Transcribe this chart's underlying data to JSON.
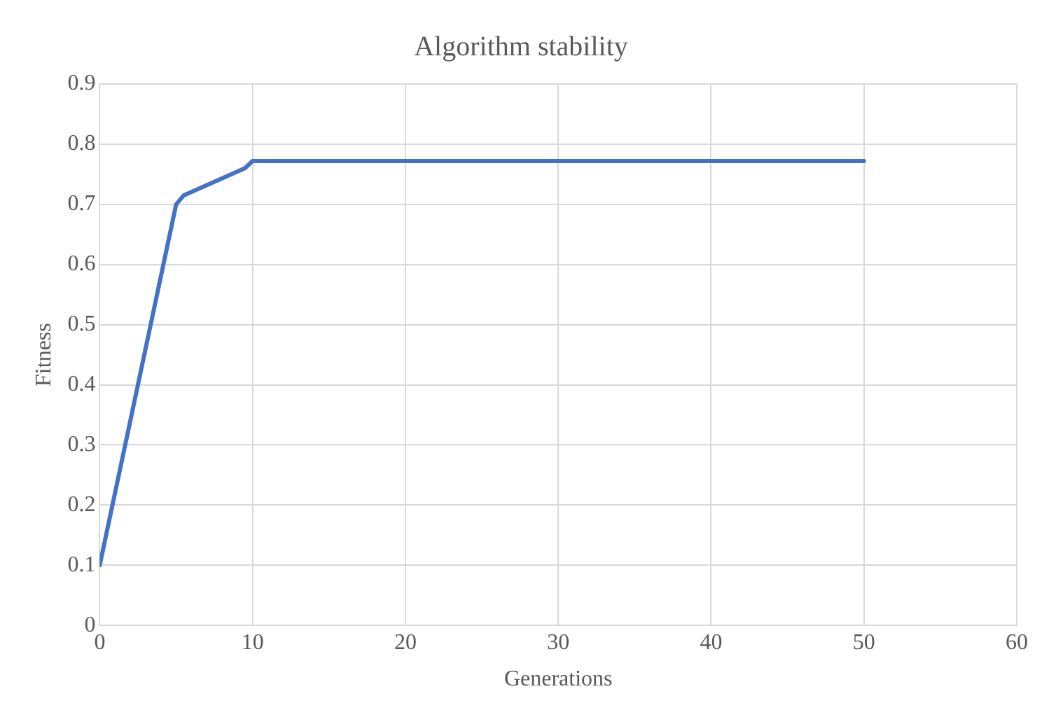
{
  "chart_data": {
    "type": "line",
    "title": "Algorithm stability",
    "xlabel": "Generations",
    "ylabel": "Fitness",
    "series": [
      {
        "color": "#4472c4",
        "x": [
          0,
          5,
          5.5,
          9.5,
          10,
          50
        ],
        "values": [
          0.1,
          0.7,
          0.715,
          0.76,
          0.772,
          0.772
        ]
      }
    ],
    "xlim": [
      0,
      60
    ],
    "xticks": [
      0,
      10,
      20,
      30,
      40,
      50,
      60
    ],
    "ylim": [
      0,
      0.9
    ],
    "yticks": [
      0,
      0.1,
      0.2,
      0.3,
      0.4,
      0.5,
      0.6,
      0.7,
      0.8,
      0.9
    ],
    "grid": true,
    "legend": false,
    "marker": "none",
    "line_style": "solid"
  }
}
